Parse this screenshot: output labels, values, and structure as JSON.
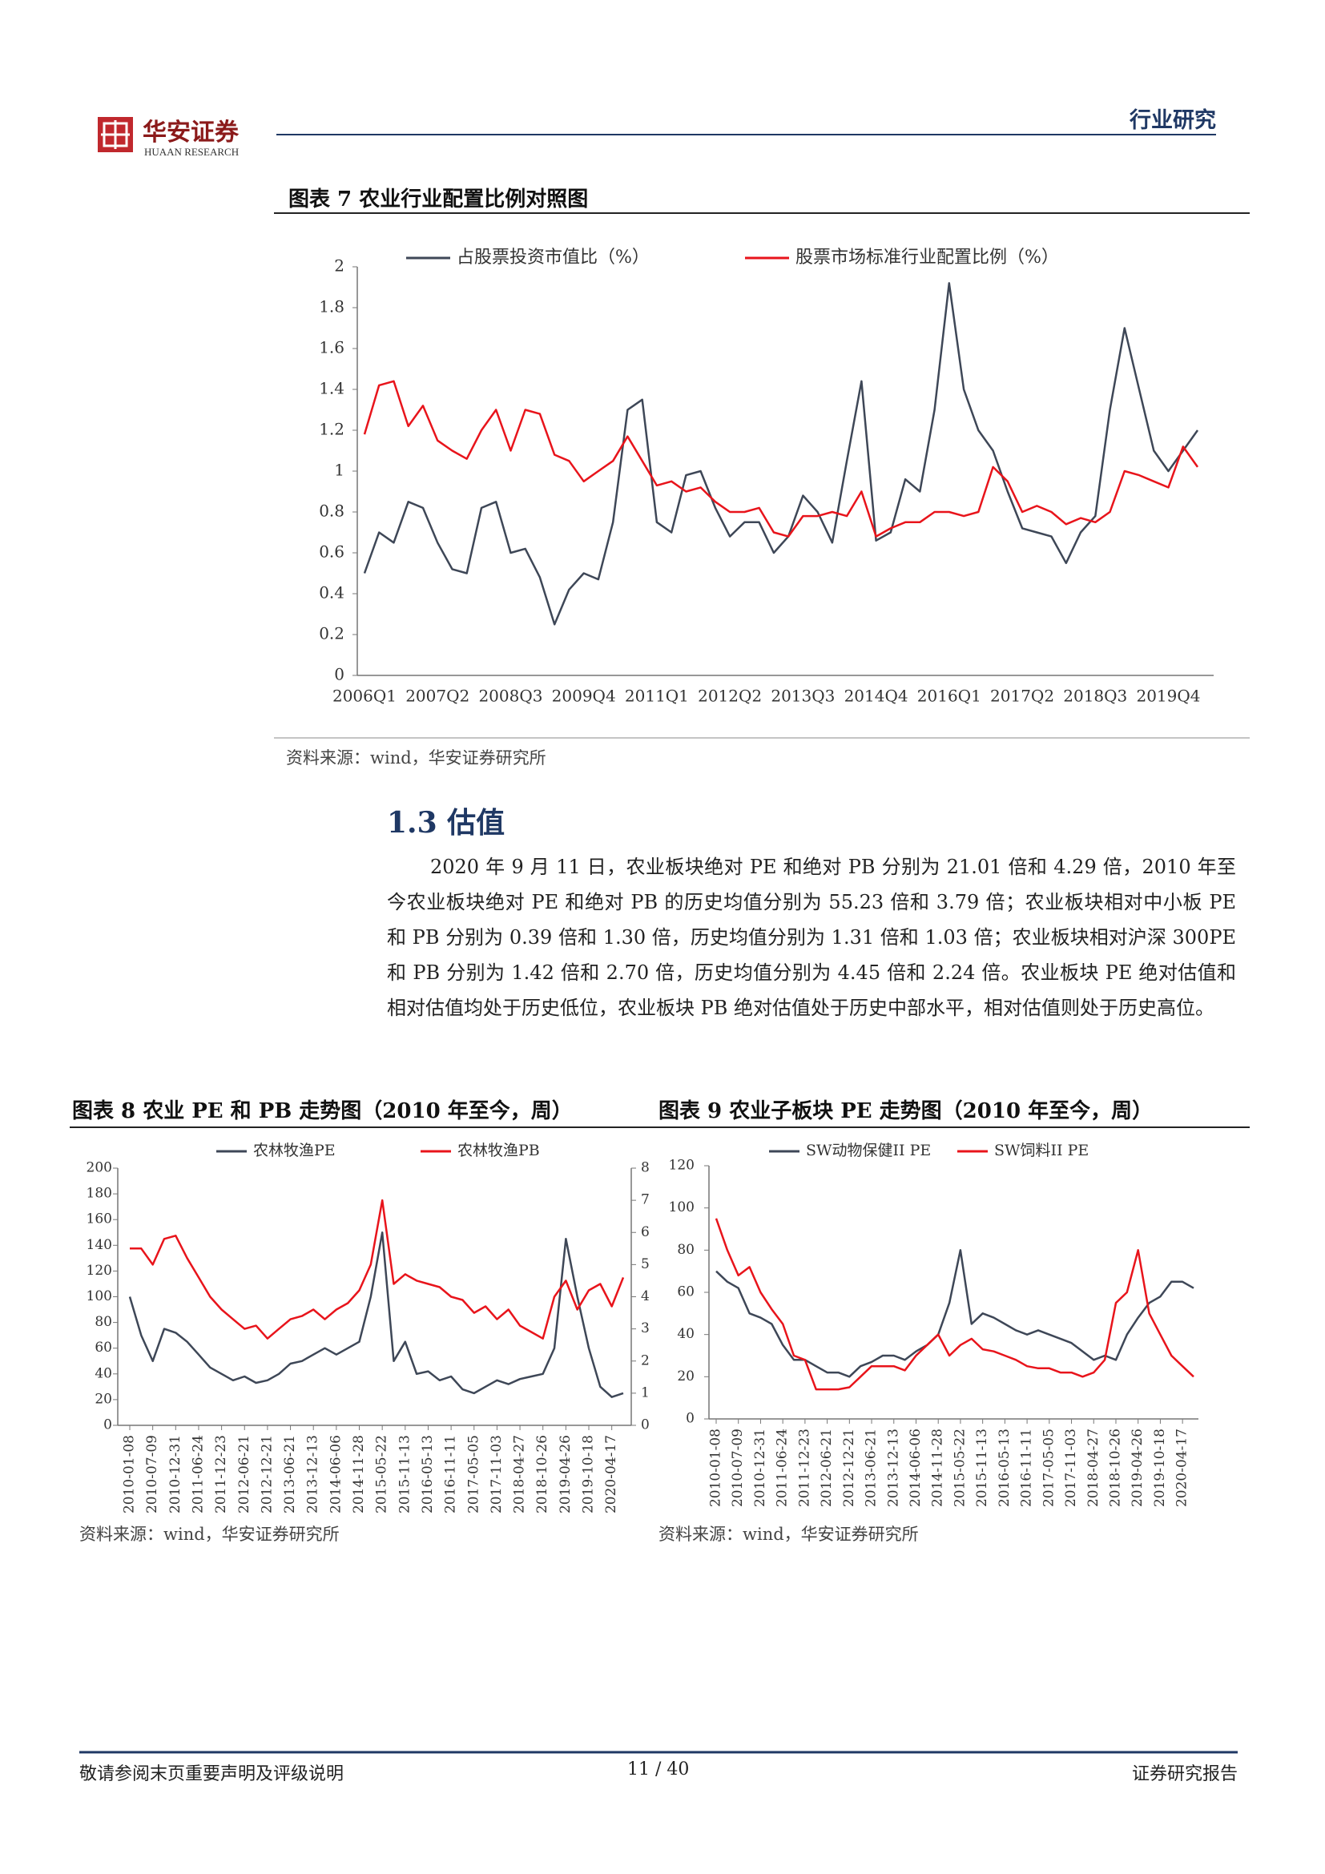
{
  "header": {
    "brand": "华安证券",
    "brand_en": "HUAAN RESEARCH",
    "section": "行业研究"
  },
  "section": {
    "heading": "1.3 估值",
    "paragraph": "2020 年 9 月 11 日，农业板块绝对 PE 和绝对 PB 分别为 21.01 倍和 4.29 倍，2010 年至今农业板块绝对 PE 和绝对 PB 的历史均值分别为 55.23 倍和 3.79 倍；农业板块相对中小板 PE 和 PB 分别为 0.39 倍和 1.30 倍，历史均值分别为 1.31 倍和 1.03 倍；农业板块相对沪深 300PE 和 PB 分别为 1.42 倍和 2.70 倍，历史均值分别为 4.45 倍和 2.24 倍。农业板块 PE 绝对估值和相对估值均处于历史低位，农业板块 PB 绝对估值处于历史中部水平，相对估值则处于历史高位。"
  },
  "chart_data": [
    {
      "type": "line",
      "title": "图表 7 农业行业配置比例对照图",
      "source": "资料来源：wind，华安证券研究所",
      "categories": [
        "2006Q1",
        null,
        null,
        null,
        null,
        "2007Q2",
        null,
        null,
        null,
        null,
        "2008Q3",
        null,
        null,
        null,
        null,
        "2009Q4",
        null,
        null,
        null,
        null,
        "2011Q1",
        null,
        null,
        null,
        null,
        "2012Q2",
        null,
        null,
        null,
        null,
        "2013Q3",
        null,
        null,
        null,
        null,
        "2014Q4",
        null,
        null,
        null,
        null,
        "2016Q1",
        null,
        null,
        null,
        null,
        "2017Q2",
        null,
        null,
        null,
        null,
        "2018Q3",
        null,
        null,
        null,
        null,
        "2019Q4",
        null,
        null
      ],
      "series": [
        {
          "name": "占股票投资市值比（%）",
          "color": "#3e4757",
          "values": [
            0.5,
            0.7,
            0.65,
            0.85,
            0.82,
            0.65,
            0.52,
            0.5,
            0.82,
            0.85,
            0.6,
            0.62,
            0.48,
            0.25,
            0.42,
            0.5,
            0.47,
            0.75,
            1.3,
            1.35,
            0.75,
            0.7,
            0.98,
            1.0,
            0.82,
            0.68,
            0.75,
            0.75,
            0.6,
            0.68,
            0.88,
            0.8,
            0.65,
            1.05,
            1.44,
            0.66,
            0.7,
            0.96,
            0.9,
            1.3,
            1.92,
            1.4,
            1.2,
            1.1,
            0.9,
            0.72,
            0.7,
            0.68,
            0.55,
            0.7,
            0.78,
            1.3,
            1.7,
            1.4,
            1.1,
            1.0,
            1.1,
            1.2
          ]
        },
        {
          "name": "股票市场标准行业配置比例（%）",
          "color": "#e8141b",
          "values": [
            1.18,
            1.42,
            1.44,
            1.22,
            1.32,
            1.15,
            1.1,
            1.06,
            1.2,
            1.3,
            1.1,
            1.3,
            1.28,
            1.08,
            1.05,
            0.95,
            1.0,
            1.05,
            1.17,
            1.05,
            0.93,
            0.95,
            0.9,
            0.92,
            0.85,
            0.8,
            0.8,
            0.82,
            0.7,
            0.68,
            0.78,
            0.78,
            0.8,
            0.78,
            0.9,
            0.68,
            0.72,
            0.75,
            0.75,
            0.8,
            0.8,
            0.78,
            0.8,
            1.02,
            0.95,
            0.8,
            0.83,
            0.8,
            0.74,
            0.77,
            0.75,
            0.8,
            1.0,
            0.98,
            0.95,
            0.92,
            1.12,
            1.02
          ]
        }
      ],
      "ylim": [
        0,
        2
      ],
      "yticks": [
        0,
        0.2,
        0.4,
        0.6,
        0.8,
        1,
        1.2,
        1.4,
        1.6,
        1.8,
        2
      ]
    },
    {
      "type": "line",
      "title": "图表 8 农业 PE 和 PB 走势图（2010 年至今，周）",
      "source": "资料来源：wind，华安证券研究所",
      "categories": [
        "2010-01-08",
        null,
        "2010-07-09",
        null,
        "2010-12-31",
        null,
        "2011-06-24",
        null,
        "2011-12-23",
        null,
        "2012-06-21",
        null,
        "2012-12-21",
        null,
        "2013-06-21",
        null,
        "2013-12-13",
        null,
        "2014-06-06",
        null,
        "2014-11-28",
        null,
        "2015-05-22",
        null,
        "2015-11-13",
        null,
        "2016-05-13",
        null,
        "2016-11-11",
        null,
        "2017-05-05",
        null,
        "2017-11-03",
        null,
        "2018-04-27",
        null,
        "2018-10-26",
        null,
        "2019-04-26",
        null,
        "2019-10-18",
        null,
        "2020-04-17",
        null
      ],
      "series": [
        {
          "name": "农林牧渔PE",
          "color": "#3e4757",
          "values": [
            100,
            70,
            50,
            75,
            72,
            65,
            55,
            45,
            40,
            35,
            38,
            33,
            35,
            40,
            48,
            50,
            55,
            60,
            55,
            60,
            65,
            100,
            150,
            50,
            65,
            40,
            42,
            35,
            38,
            28,
            25,
            30,
            35,
            32,
            36,
            38,
            40,
            60,
            145,
            100,
            60,
            30,
            22,
            25
          ]
        },
        {
          "name": "农林牧渔PB",
          "color": "#e8141b",
          "axis": "y2",
          "values": [
            5.5,
            5.5,
            5.0,
            5.8,
            5.9,
            5.2,
            4.6,
            4.0,
            3.6,
            3.3,
            3.0,
            3.1,
            2.7,
            3.0,
            3.3,
            3.4,
            3.6,
            3.3,
            3.6,
            3.8,
            4.2,
            5.0,
            7.0,
            4.4,
            4.7,
            4.5,
            4.4,
            4.3,
            4.0,
            3.9,
            3.5,
            3.7,
            3.3,
            3.6,
            3.1,
            2.9,
            2.7,
            4.0,
            4.5,
            3.6,
            4.2,
            4.4,
            3.7,
            4.6
          ]
        }
      ],
      "ylim": [
        0,
        200
      ],
      "yticks": [
        0,
        20,
        40,
        60,
        80,
        100,
        120,
        140,
        160,
        180,
        200
      ],
      "y2lim": [
        0,
        8
      ],
      "y2ticks": [
        0,
        1,
        2,
        3,
        4,
        5,
        6,
        7,
        8
      ]
    },
    {
      "type": "line",
      "title": "图表 9 农业子板块 PE 走势图（2010 年至今，周）",
      "source": "资料来源：wind，华安证券研究所",
      "categories": [
        "2010-01-08",
        null,
        "2010-07-09",
        null,
        "2010-12-31",
        null,
        "2011-06-24",
        null,
        "2011-12-23",
        null,
        "2012-06-21",
        null,
        "2012-12-21",
        null,
        "2013-06-21",
        null,
        "2013-12-13",
        null,
        "2014-06-06",
        null,
        "2014-11-28",
        null,
        "2015-05-22",
        null,
        "2015-11-13",
        null,
        "2016-05-13",
        null,
        "2016-11-11",
        null,
        "2017-05-05",
        null,
        "2017-11-03",
        null,
        "2018-04-27",
        null,
        "2018-10-26",
        null,
        "2019-04-26",
        null,
        "2019-10-18",
        null,
        "2020-04-17",
        null
      ],
      "series": [
        {
          "name": "SW动物保健II PE",
          "color": "#3e4757",
          "values": [
            70,
            65,
            62,
            50,
            48,
            45,
            35,
            28,
            28,
            25,
            22,
            22,
            20,
            25,
            27,
            30,
            30,
            28,
            32,
            35,
            40,
            55,
            80,
            45,
            50,
            48,
            45,
            42,
            40,
            42,
            40,
            38,
            36,
            32,
            28,
            30,
            28,
            40,
            48,
            55,
            58,
            65,
            65,
            62
          ]
        },
        {
          "name": "SW饲料II PE",
          "color": "#e8141b",
          "values": [
            95,
            80,
            68,
            72,
            60,
            52,
            45,
            30,
            28,
            14,
            14,
            14,
            15,
            20,
            25,
            25,
            25,
            23,
            30,
            35,
            40,
            30,
            35,
            38,
            33,
            32,
            30,
            28,
            25,
            24,
            24,
            22,
            22,
            20,
            22,
            28,
            55,
            60,
            80,
            50,
            40,
            30,
            25,
            20
          ]
        }
      ],
      "ylim": [
        0,
        120
      ],
      "yticks": [
        0,
        20,
        40,
        60,
        80,
        100,
        120
      ]
    }
  ],
  "footer": {
    "left": "敬请参阅末页重要声明及评级说明",
    "page": "11 / 40",
    "right": "证券研究报告"
  }
}
